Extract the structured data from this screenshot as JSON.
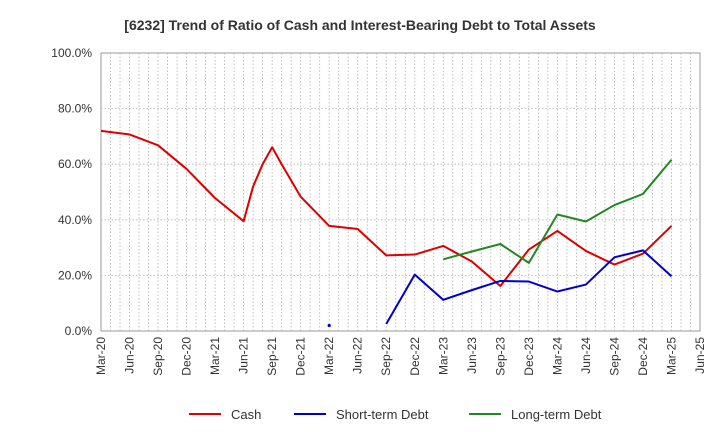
{
  "chart_data": {
    "type": "line",
    "title": "[6232]  Trend of Ratio of Cash and Interest-Bearing Debt to Total Assets",
    "xlabel": "",
    "ylabel": "",
    "ylim": [
      0,
      100
    ],
    "yticks": [
      "0.0%",
      "20.0%",
      "40.0%",
      "60.0%",
      "80.0%",
      "100.0%"
    ],
    "ytick_values": [
      0,
      20,
      40,
      60,
      80,
      100
    ],
    "x_labels": [
      "Mar-20",
      "Jun-20",
      "Sep-20",
      "Dec-20",
      "Mar-21",
      "Jun-21",
      "Sep-21",
      "Dec-21",
      "Mar-22",
      "Jun-22",
      "Sep-22",
      "Dec-22",
      "Mar-23",
      "Jun-23",
      "Sep-23",
      "Dec-23",
      "Mar-24",
      "Jun-24",
      "Sep-24",
      "Dec-24",
      "Mar-25",
      "Jun-25"
    ],
    "x_range_months": [
      0,
      63
    ],
    "grid": true,
    "legend_position": "bottom",
    "series": [
      {
        "name": "Cash",
        "color": "#dd0000",
        "points": [
          [
            0,
            72.0
          ],
          [
            3,
            70.7
          ],
          [
            6,
            66.8
          ],
          [
            9,
            58.3
          ],
          [
            12,
            47.8
          ],
          [
            15,
            39.5
          ],
          [
            16,
            52.0
          ],
          [
            17,
            60.0
          ],
          [
            18,
            66.1
          ],
          [
            19,
            60.0
          ],
          [
            21,
            48.3
          ],
          [
            24,
            37.8
          ],
          [
            27,
            36.7
          ],
          [
            30,
            27.2
          ],
          [
            33,
            27.5
          ],
          [
            36,
            30.6
          ],
          [
            39,
            25.0
          ],
          [
            42,
            16.2
          ],
          [
            45,
            29.3
          ],
          [
            48,
            36.0
          ],
          [
            51,
            28.8
          ],
          [
            54,
            23.9
          ],
          [
            57,
            27.8
          ],
          [
            60,
            37.8
          ]
        ]
      },
      {
        "name": "Short-term Debt",
        "color": "#0000cc",
        "points": [
          [
            30,
            2.5
          ],
          [
            33,
            20.3
          ],
          [
            36,
            11.2
          ],
          [
            39,
            14.7
          ],
          [
            42,
            18.0
          ],
          [
            45,
            17.8
          ],
          [
            48,
            14.2
          ],
          [
            51,
            16.7
          ],
          [
            54,
            26.5
          ],
          [
            57,
            29.0
          ],
          [
            60,
            19.7
          ]
        ]
      },
      {
        "name": "Short-term Debt (isolated point)",
        "color": "#0000cc",
        "points": [
          [
            24,
            2.0
          ]
        ]
      },
      {
        "name": "Long-term Debt",
        "color": "#228822",
        "points": [
          [
            36,
            25.8
          ],
          [
            39,
            28.6
          ],
          [
            42,
            31.3
          ],
          [
            45,
            24.5
          ],
          [
            48,
            41.9
          ],
          [
            51,
            39.4
          ],
          [
            54,
            45.3
          ],
          [
            57,
            49.3
          ],
          [
            60,
            61.6
          ]
        ]
      }
    ],
    "legend": [
      {
        "name": "Cash",
        "color": "#dd0000"
      },
      {
        "name": "Short-term Debt",
        "color": "#0000cc"
      },
      {
        "name": "Long-term Debt",
        "color": "#228822"
      }
    ]
  }
}
